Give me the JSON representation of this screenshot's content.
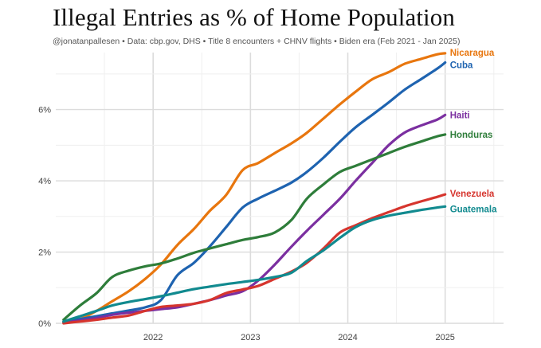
{
  "title": "Illegal Entries as % of Home Population",
  "subtitle": "@jonatanpallesen  •  Data: cbp.gov, DHS  •  Title 8 encounters + CHNV flights  •  Biden era (Feb 2021 - Jan 2025)",
  "chart_data": {
    "type": "line",
    "title": "Illegal Entries as % of Home Population",
    "xlabel": "",
    "ylabel": "",
    "xlim": [
      2021.0,
      2025.6
    ],
    "ylim": [
      0,
      7.6
    ],
    "x_ticks": [
      2022,
      2023,
      2024,
      2025
    ],
    "x_tick_labels": [
      "2022",
      "2023",
      "2024",
      "2025"
    ],
    "y_ticks": [
      0,
      2,
      4,
      6
    ],
    "y_tick_labels": [
      "0%",
      "2%",
      "4%",
      "6%"
    ],
    "grid": true,
    "legend": "direct labels at line ends",
    "series": [
      {
        "name": "Nicaragua",
        "color": "#E8760E",
        "x": [
          2021.08,
          2021.25,
          2021.42,
          2021.58,
          2021.75,
          2021.92,
          2022.08,
          2022.25,
          2022.42,
          2022.58,
          2022.75,
          2022.92,
          2023.08,
          2023.25,
          2023.42,
          2023.58,
          2023.75,
          2023.92,
          2024.08,
          2024.25,
          2024.42,
          2024.58,
          2024.75,
          2024.92,
          2025.0
        ],
        "y": [
          0.02,
          0.12,
          0.35,
          0.62,
          0.9,
          1.25,
          1.65,
          2.2,
          2.65,
          3.15,
          3.6,
          4.3,
          4.5,
          4.78,
          5.05,
          5.35,
          5.75,
          6.15,
          6.5,
          6.85,
          7.05,
          7.28,
          7.42,
          7.55,
          7.58
        ]
      },
      {
        "name": "Cuba",
        "color": "#1E63B0",
        "x": [
          2021.08,
          2021.25,
          2021.42,
          2021.58,
          2021.75,
          2021.92,
          2022.08,
          2022.25,
          2022.42,
          2022.58,
          2022.75,
          2022.92,
          2023.08,
          2023.25,
          2023.42,
          2023.58,
          2023.75,
          2023.92,
          2024.08,
          2024.25,
          2024.42,
          2024.58,
          2024.75,
          2024.92,
          2025.0
        ],
        "y": [
          0.05,
          0.12,
          0.2,
          0.28,
          0.36,
          0.45,
          0.65,
          1.35,
          1.7,
          2.15,
          2.7,
          3.25,
          3.5,
          3.72,
          3.95,
          4.25,
          4.65,
          5.1,
          5.5,
          5.85,
          6.2,
          6.55,
          6.85,
          7.15,
          7.32
        ]
      },
      {
        "name": "Haiti",
        "color": "#7B2FA0",
        "x": [
          2021.08,
          2021.25,
          2021.42,
          2021.58,
          2021.75,
          2021.92,
          2022.08,
          2022.25,
          2022.42,
          2022.58,
          2022.75,
          2022.92,
          2023.08,
          2023.25,
          2023.42,
          2023.58,
          2023.75,
          2023.92,
          2024.08,
          2024.25,
          2024.42,
          2024.58,
          2024.75,
          2024.92,
          2025.0
        ],
        "y": [
          0.02,
          0.08,
          0.15,
          0.24,
          0.3,
          0.35,
          0.4,
          0.45,
          0.55,
          0.65,
          0.78,
          0.9,
          1.2,
          1.65,
          2.15,
          2.6,
          3.05,
          3.5,
          4.0,
          4.5,
          5.0,
          5.35,
          5.55,
          5.72,
          5.85
        ]
      },
      {
        "name": "Honduras",
        "color": "#2E7D3A",
        "x": [
          2021.08,
          2021.25,
          2021.42,
          2021.58,
          2021.75,
          2021.92,
          2022.08,
          2022.25,
          2022.42,
          2022.58,
          2022.75,
          2022.92,
          2023.08,
          2023.25,
          2023.42,
          2023.58,
          2023.75,
          2023.92,
          2024.08,
          2024.25,
          2024.42,
          2024.58,
          2024.75,
          2024.92,
          2025.0
        ],
        "y": [
          0.1,
          0.5,
          0.85,
          1.3,
          1.48,
          1.6,
          1.68,
          1.82,
          1.98,
          2.1,
          2.22,
          2.34,
          2.42,
          2.55,
          2.9,
          3.5,
          3.9,
          4.25,
          4.42,
          4.6,
          4.78,
          4.95,
          5.1,
          5.25,
          5.3
        ]
      },
      {
        "name": "Venezuela",
        "color": "#D6352E",
        "x": [
          2021.08,
          2021.25,
          2021.42,
          2021.58,
          2021.75,
          2021.92,
          2022.08,
          2022.25,
          2022.42,
          2022.58,
          2022.75,
          2022.92,
          2023.08,
          2023.25,
          2023.42,
          2023.58,
          2023.75,
          2023.92,
          2024.08,
          2024.25,
          2024.42,
          2024.58,
          2024.75,
          2024.92,
          2025.0
        ],
        "y": [
          0.0,
          0.05,
          0.1,
          0.16,
          0.22,
          0.35,
          0.46,
          0.5,
          0.55,
          0.65,
          0.85,
          0.95,
          1.05,
          1.25,
          1.45,
          1.7,
          2.1,
          2.55,
          2.75,
          2.95,
          3.12,
          3.28,
          3.42,
          3.55,
          3.62
        ]
      },
      {
        "name": "Guatemala",
        "color": "#118A8F",
        "x": [
          2021.08,
          2021.25,
          2021.42,
          2021.58,
          2021.75,
          2021.92,
          2022.08,
          2022.25,
          2022.42,
          2022.58,
          2022.75,
          2022.92,
          2023.08,
          2023.25,
          2023.42,
          2023.58,
          2023.75,
          2023.92,
          2024.08,
          2024.25,
          2024.42,
          2024.58,
          2024.75,
          2024.92,
          2025.0
        ],
        "y": [
          0.05,
          0.2,
          0.35,
          0.5,
          0.6,
          0.68,
          0.76,
          0.86,
          0.96,
          1.03,
          1.1,
          1.16,
          1.22,
          1.3,
          1.42,
          1.75,
          2.05,
          2.4,
          2.7,
          2.9,
          3.02,
          3.1,
          3.18,
          3.25,
          3.28
        ]
      }
    ]
  }
}
